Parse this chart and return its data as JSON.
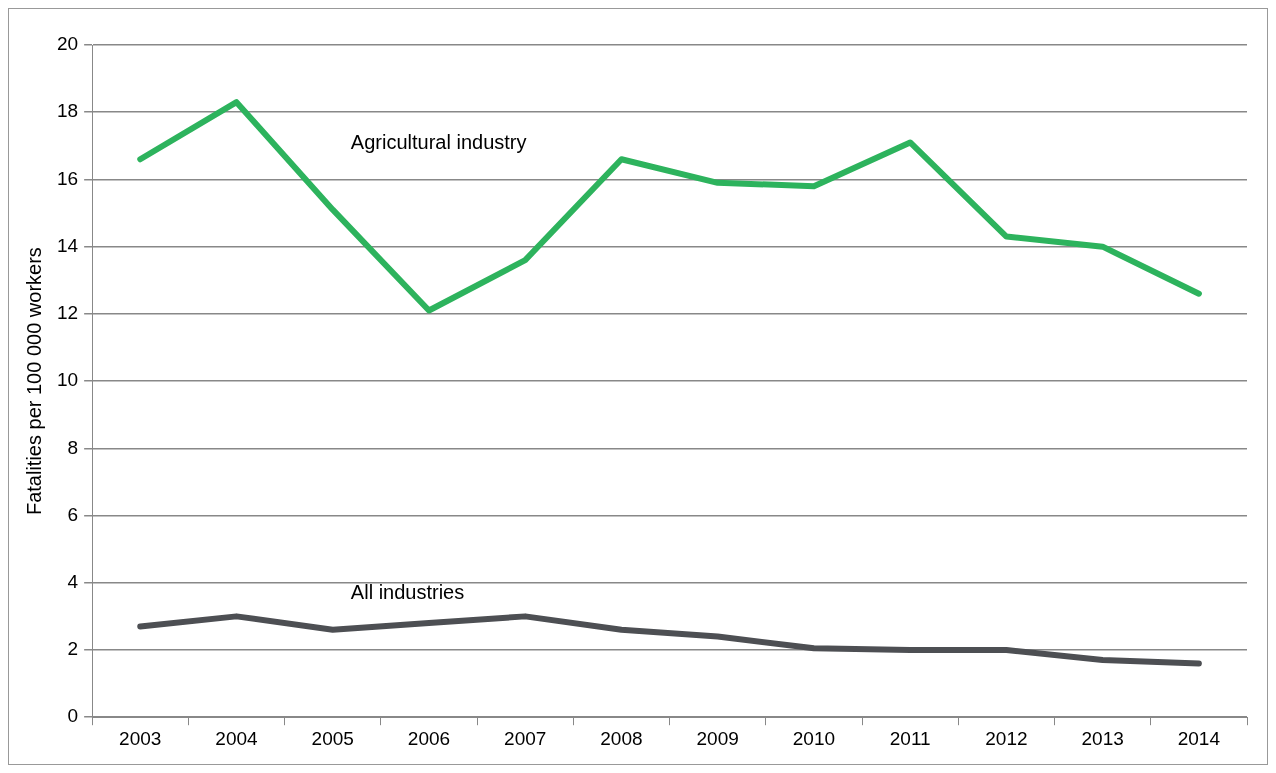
{
  "chart_data": {
    "type": "line",
    "ylabel": "Fatalities per 100 000 workers",
    "categories": [
      "2003",
      "2004",
      "2005",
      "2006",
      "2007",
      "2008",
      "2009",
      "2010",
      "2011",
      "2012",
      "2013",
      "2014"
    ],
    "series": [
      {
        "name": "Agricultural industry",
        "color": "#2db35d",
        "values": [
          16.6,
          18.3,
          15.1,
          12.1,
          13.6,
          16.6,
          15.9,
          15.8,
          17.1,
          14.3,
          14.0,
          12.6
        ]
      },
      {
        "name": "All industries",
        "color": "#4d4f53",
        "values": [
          2.7,
          3.0,
          2.6,
          2.8,
          3.0,
          2.6,
          2.4,
          2.05,
          2.0,
          2.0,
          1.7,
          1.6
        ]
      }
    ],
    "ylim": [
      0,
      20
    ],
    "yticks": [
      0,
      2,
      4,
      6,
      8,
      10,
      12,
      14,
      16,
      18,
      20
    ],
    "grid": "y",
    "legend": false,
    "marker": "none",
    "line_style": "solid"
  }
}
